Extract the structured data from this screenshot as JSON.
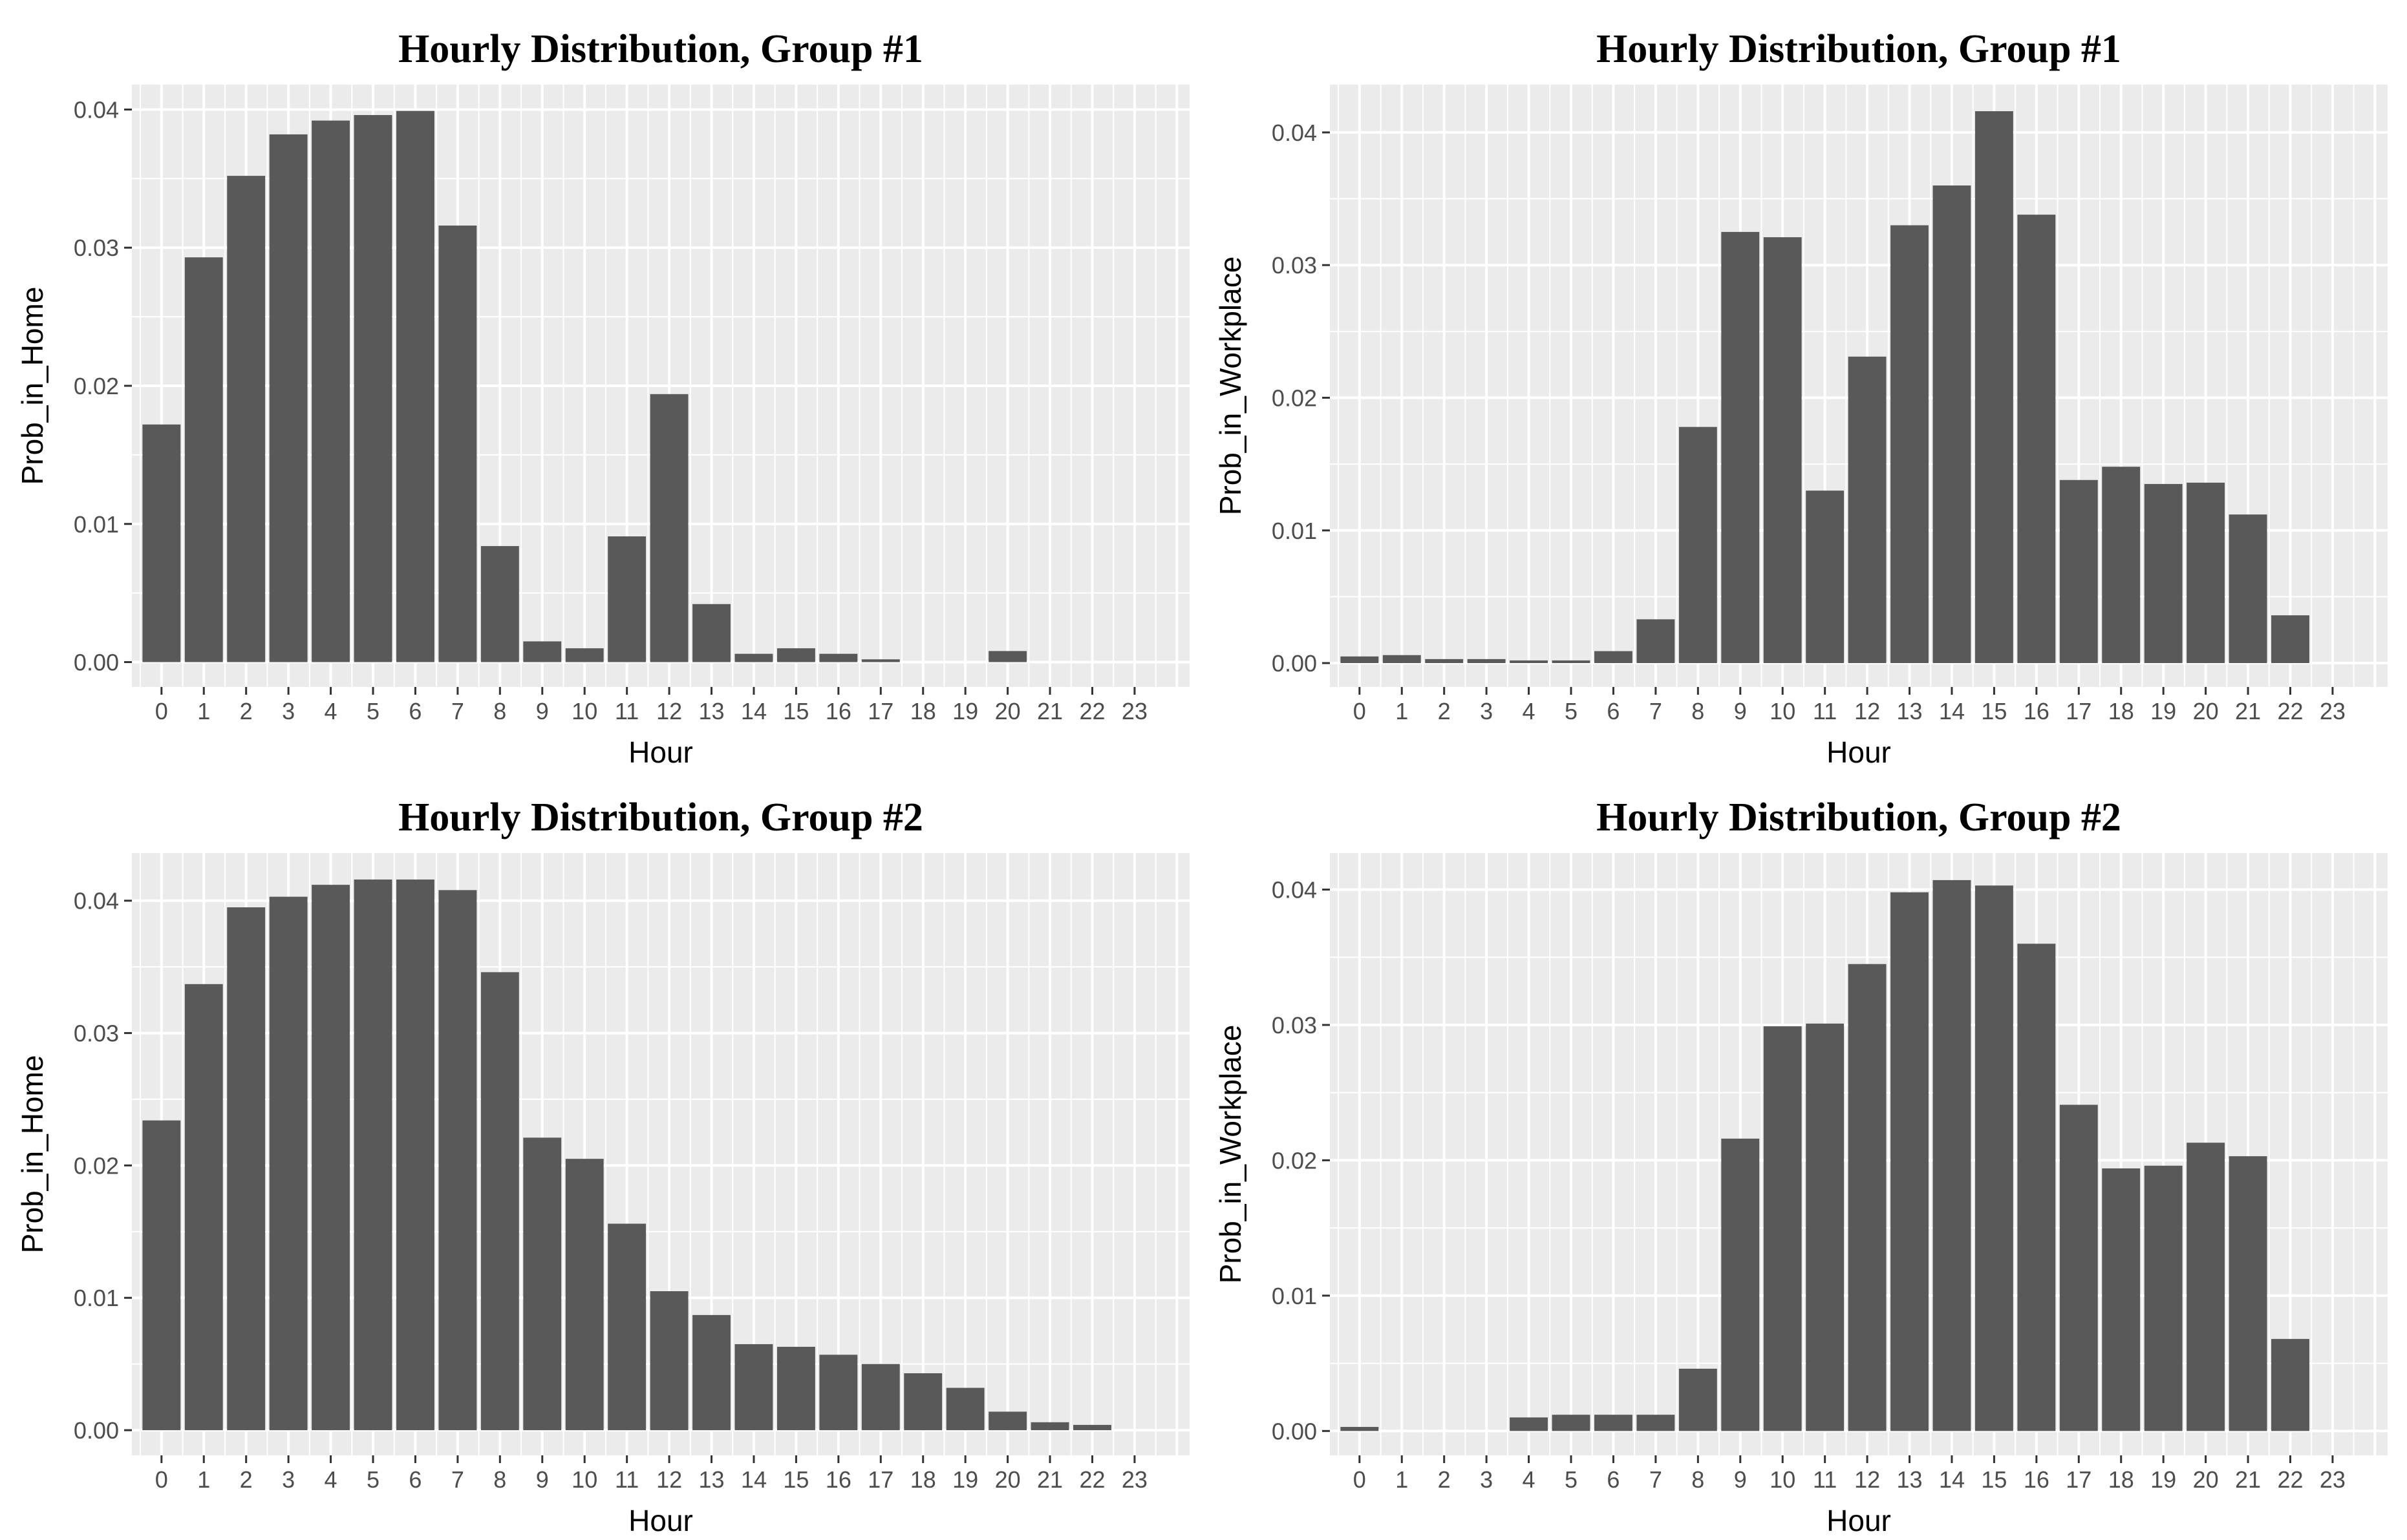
{
  "figure": {
    "colors": {
      "panel_background": "#ebebeb",
      "gridline": "#ffffff",
      "bar_fill": "#595959",
      "tick_color": "#333333",
      "tick_label": "#4d4d4d"
    }
  },
  "chart_data": [
    {
      "type": "bar",
      "title": "Hourly Distribution, Group #1",
      "xlabel": "Hour",
      "ylabel": "Prob_in_Home",
      "categories": [
        "0",
        "1",
        "2",
        "3",
        "4",
        "5",
        "6",
        "7",
        "8",
        "9",
        "10",
        "11",
        "12",
        "13",
        "14",
        "15",
        "16",
        "17",
        "18",
        "19",
        "20",
        "21",
        "22",
        "23"
      ],
      "values": [
        0.0172,
        0.0293,
        0.0352,
        0.0382,
        0.0392,
        0.0396,
        0.0399,
        0.0316,
        0.0084,
        0.0015,
        0.001,
        0.0091,
        0.0194,
        0.0042,
        0.0006,
        0.001,
        0.0006,
        0.0002,
        0.0,
        0.0,
        0.0008,
        0.0,
        0.0,
        0.0
      ],
      "yticks": [
        0.0,
        0.01,
        0.02,
        0.03,
        0.04
      ],
      "ytick_labels": [
        "0.00",
        "0.01",
        "0.02",
        "0.03",
        "0.04"
      ],
      "ylim": [
        -0.0018,
        0.0418
      ],
      "xlim": [
        -0.7,
        24.3
      ],
      "grid": true,
      "legend": "none"
    },
    {
      "type": "bar",
      "title": "Hourly Distribution, Group #1",
      "xlabel": "Hour",
      "ylabel": "Prob_in_Workplace",
      "categories": [
        "0",
        "1",
        "2",
        "3",
        "4",
        "5",
        "6",
        "7",
        "8",
        "9",
        "10",
        "11",
        "12",
        "13",
        "14",
        "15",
        "16",
        "17",
        "18",
        "19",
        "20",
        "21",
        "22",
        "23"
      ],
      "values": [
        0.0005,
        0.0006,
        0.0003,
        0.0003,
        0.0002,
        0.0002,
        0.0009,
        0.0033,
        0.0178,
        0.0325,
        0.0321,
        0.013,
        0.0231,
        0.033,
        0.036,
        0.0416,
        0.0338,
        0.0138,
        0.0148,
        0.0135,
        0.0136,
        0.0112,
        0.0036,
        0.0
      ],
      "yticks": [
        0.0,
        0.01,
        0.02,
        0.03,
        0.04
      ],
      "ytick_labels": [
        "0.00",
        "0.01",
        "0.02",
        "0.03",
        "0.04"
      ],
      "ylim": [
        -0.0018,
        0.0436
      ],
      "xlim": [
        -0.7,
        24.3
      ],
      "grid": true,
      "legend": "none"
    },
    {
      "type": "bar",
      "title": "Hourly Distribution, Group #2",
      "xlabel": "Hour",
      "ylabel": "Prob_in_Home",
      "categories": [
        "0",
        "1",
        "2",
        "3",
        "4",
        "5",
        "6",
        "7",
        "8",
        "9",
        "10",
        "11",
        "12",
        "13",
        "14",
        "15",
        "16",
        "17",
        "18",
        "19",
        "20",
        "21",
        "22",
        "23"
      ],
      "values": [
        0.0234,
        0.0337,
        0.0395,
        0.0403,
        0.0412,
        0.0416,
        0.0416,
        0.0408,
        0.0346,
        0.0221,
        0.0205,
        0.0156,
        0.0105,
        0.0087,
        0.0065,
        0.0063,
        0.0057,
        0.005,
        0.0043,
        0.0032,
        0.0014,
        0.0006,
        0.0004,
        0.0
      ],
      "yticks": [
        0.0,
        0.01,
        0.02,
        0.03,
        0.04
      ],
      "ytick_labels": [
        "0.00",
        "0.01",
        "0.02",
        "0.03",
        "0.04"
      ],
      "ylim": [
        -0.0019,
        0.0436
      ],
      "xlim": [
        -0.7,
        24.3
      ],
      "grid": true,
      "legend": "none"
    },
    {
      "type": "bar",
      "title": "Hourly Distribution, Group #2",
      "xlabel": "Hour",
      "ylabel": "Prob_in_Workplace",
      "categories": [
        "0",
        "1",
        "2",
        "3",
        "4",
        "5",
        "6",
        "7",
        "8",
        "9",
        "10",
        "11",
        "12",
        "13",
        "14",
        "15",
        "16",
        "17",
        "18",
        "19",
        "20",
        "21",
        "22",
        "23"
      ],
      "values": [
        0.0003,
        0.0,
        0.0,
        0.0,
        0.001,
        0.0012,
        0.0012,
        0.0012,
        0.0046,
        0.0216,
        0.0299,
        0.0301,
        0.0345,
        0.0398,
        0.0407,
        0.0403,
        0.036,
        0.0241,
        0.0194,
        0.0196,
        0.0213,
        0.0203,
        0.0068,
        0.0
      ],
      "yticks": [
        0.0,
        0.01,
        0.02,
        0.03,
        0.04
      ],
      "ytick_labels": [
        "0.00",
        "0.01",
        "0.02",
        "0.03",
        "0.04"
      ],
      "ylim": [
        -0.0018,
        0.0427
      ],
      "xlim": [
        -0.7,
        24.3
      ],
      "grid": true,
      "legend": "none"
    }
  ]
}
